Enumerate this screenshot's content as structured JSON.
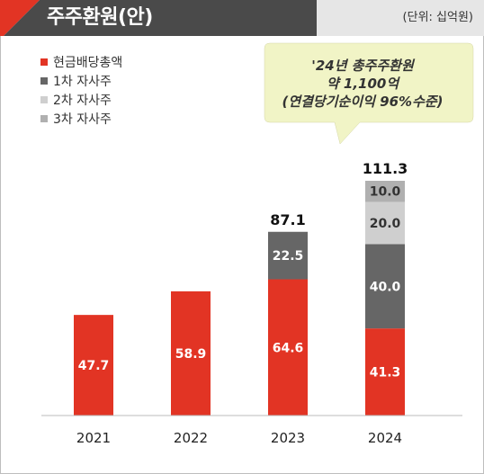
{
  "header": {
    "title": "주주환원(안)",
    "unit": "(단위: 십억원)"
  },
  "colors": {
    "accent": "#e23424",
    "dark_bar": "#666666",
    "light_bar": "#cfcfcf",
    "mid_bar": "#b0b0b0",
    "header_dark": "#4a4a4a",
    "header_light": "#e6e6e6",
    "bubble": "#f1f4c6"
  },
  "callout": {
    "line1": "'24년 총주주환원",
    "line2": "약 1,100억",
    "line3": "(연결당기순이익 96%수준)"
  },
  "chart_data": {
    "type": "bar",
    "stacked": true,
    "categories": [
      "2021",
      "2022",
      "2023",
      "2024"
    ],
    "series": [
      {
        "name": "현금배당총액",
        "color": "#e23424",
        "values": [
          47.7,
          58.9,
          64.6,
          41.3
        ],
        "labels": [
          "47.7",
          "58.9",
          "64.6",
          "41.3"
        ]
      },
      {
        "name": "1차 자사주",
        "color": "#666666",
        "values": [
          0,
          0,
          22.5,
          40.0
        ],
        "labels": [
          "",
          "",
          "22.5",
          "40.0"
        ]
      },
      {
        "name": "2차 자사주",
        "color": "#cfcfcf",
        "values": [
          0,
          0,
          0,
          20.0
        ],
        "labels": [
          "",
          "",
          "",
          "20.0"
        ]
      },
      {
        "name": "3차 자사주",
        "color": "#b0b0b0",
        "values": [
          0,
          0,
          0,
          10.0
        ],
        "labels": [
          "",
          "",
          "",
          "10.0"
        ]
      }
    ],
    "totals": [
      "",
      "",
      "87.1",
      "111.3"
    ],
    "ylim": [
      0,
      120
    ],
    "legend_position": "top-left",
    "grid": false
  }
}
